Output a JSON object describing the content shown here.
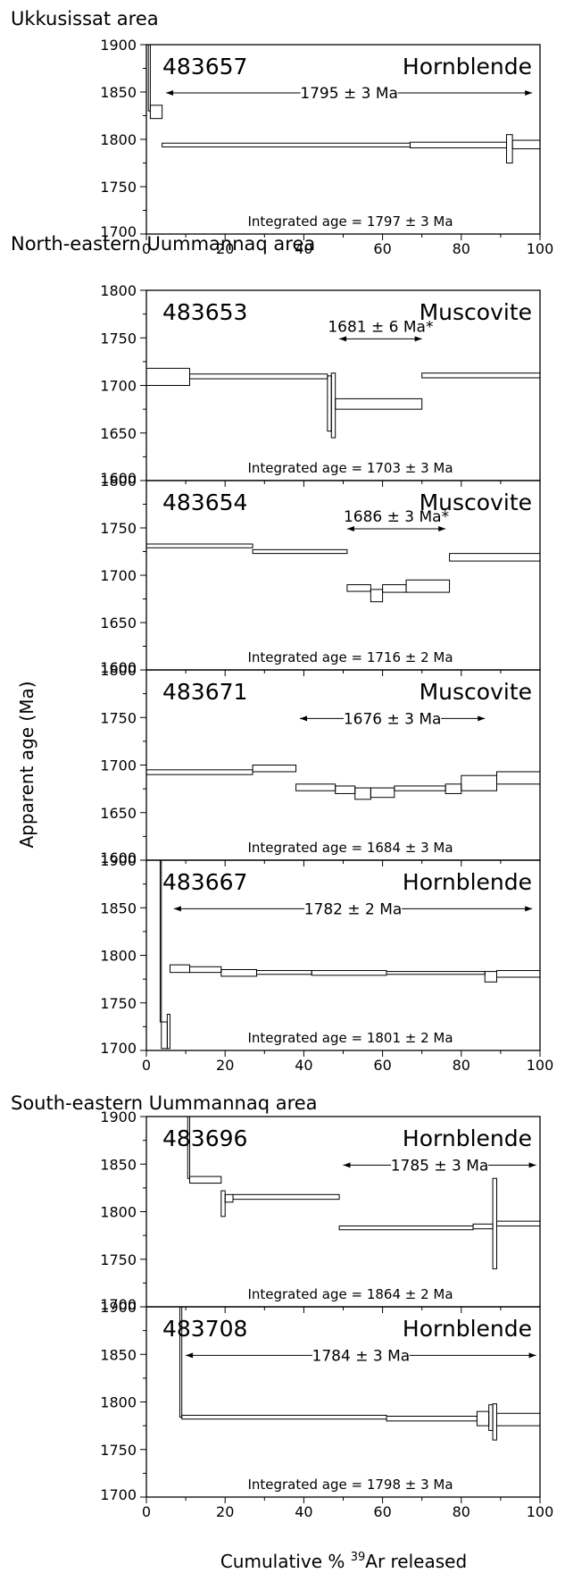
{
  "chart_data": {
    "type": "step",
    "xlabel": "Cumulative % ",
    "xlabel_sup": "39",
    "xlabel_rest": "Ar released",
    "ylabel": "Apparent age (Ma)",
    "xlim": [
      0,
      100
    ],
    "x_ticks": [
      "0",
      "20",
      "40",
      "60",
      "80",
      "100"
    ],
    "groups": [
      {
        "title": "Ukkusissat area",
        "panels": [
          {
            "sample": "483657",
            "mineral": "Hornblende",
            "ylim": [
              1700,
              1900
            ],
            "yticks": [
              "1700",
              "1750",
              "1800",
              "1850",
              "1900"
            ],
            "plateau_label": "1795 ± 3 Ma",
            "plateau_range": [
              5,
              98
            ],
            "integrated": "Integrated age = 1797 ± 3 Ma",
            "steps": [
              {
                "x0": 0.5,
                "x1": 1,
                "lo": 1830,
                "hi": 1900
              },
              {
                "x0": 1,
                "x1": 4,
                "lo": 1822,
                "hi": 1836
              },
              {
                "x0": 4,
                "x1": 67,
                "lo": 1792,
                "hi": 1796
              },
              {
                "x0": 67,
                "x1": 91.5,
                "lo": 1791,
                "hi": 1797
              },
              {
                "x0": 91.5,
                "x1": 93,
                "lo": 1775,
                "hi": 1805
              },
              {
                "x0": 93,
                "x1": 100,
                "lo": 1790,
                "hi": 1799
              }
            ],
            "show_x_ticks": true
          }
        ]
      },
      {
        "title": "North-eastern Uummannaq area",
        "panels": [
          {
            "sample": "483653",
            "mineral": "Muscovite",
            "ylim": [
              1600,
              1800
            ],
            "yticks": [
              "1600",
              "1650",
              "1700",
              "1750",
              "1800"
            ],
            "plateau_label": "1681 ± 6 Ma*",
            "plateau_range": [
              49,
              70
            ],
            "integrated": "Integrated age = 1703 ± 3 Ma",
            "steps": [
              {
                "x0": 0,
                "x1": 11,
                "lo": 1700,
                "hi": 1718
              },
              {
                "x0": 11,
                "x1": 46,
                "lo": 1707,
                "hi": 1712
              },
              {
                "x0": 46,
                "x1": 47,
                "lo": 1652,
                "hi": 1710
              },
              {
                "x0": 47,
                "x1": 48,
                "lo": 1645,
                "hi": 1713
              },
              {
                "x0": 48,
                "x1": 70,
                "lo": 1675,
                "hi": 1686
              },
              {
                "x0": 70,
                "x1": 100,
                "lo": 1708,
                "hi": 1713
              }
            ],
            "show_x_ticks": false
          },
          {
            "sample": "483654",
            "mineral": "Muscovite",
            "ylim": [
              1600,
              1800
            ],
            "yticks": [
              "1600",
              "1650",
              "1700",
              "1750",
              "1800"
            ],
            "plateau_label": "1686 ± 3 Ma*",
            "plateau_range": [
              51,
              76
            ],
            "integrated": "Integrated age = 1716 ± 2 Ma",
            "steps": [
              {
                "x0": 0,
                "x1": 27,
                "lo": 1729,
                "hi": 1733
              },
              {
                "x0": 27,
                "x1": 51,
                "lo": 1723,
                "hi": 1727
              },
              {
                "x0": 51,
                "x1": 57,
                "lo": 1683,
                "hi": 1690
              },
              {
                "x0": 57,
                "x1": 60,
                "lo": 1672,
                "hi": 1685
              },
              {
                "x0": 60,
                "x1": 66,
                "lo": 1682,
                "hi": 1690
              },
              {
                "x0": 66,
                "x1": 77,
                "lo": 1682,
                "hi": 1695
              },
              {
                "x0": 77,
                "x1": 100,
                "lo": 1715,
                "hi": 1723
              }
            ],
            "show_x_ticks": false
          },
          {
            "sample": "483671",
            "mineral": "Muscovite",
            "ylim": [
              1600,
              1800
            ],
            "yticks": [
              "1600",
              "1650",
              "1700",
              "1750",
              "1800"
            ],
            "plateau_label": "1676 ± 3 Ma",
            "plateau_range": [
              39,
              86
            ],
            "integrated": "Integrated age = 1684 ± 3 Ma",
            "steps": [
              {
                "x0": 0,
                "x1": 27,
                "lo": 1690,
                "hi": 1695
              },
              {
                "x0": 27,
                "x1": 38,
                "lo": 1693,
                "hi": 1700
              },
              {
                "x0": 38,
                "x1": 48,
                "lo": 1673,
                "hi": 1680
              },
              {
                "x0": 48,
                "x1": 53,
                "lo": 1670,
                "hi": 1678
              },
              {
                "x0": 53,
                "x1": 57,
                "lo": 1664,
                "hi": 1676
              },
              {
                "x0": 57,
                "x1": 63,
                "lo": 1666,
                "hi": 1676
              },
              {
                "x0": 63,
                "x1": 76,
                "lo": 1673,
                "hi": 1678
              },
              {
                "x0": 76,
                "x1": 80,
                "lo": 1670,
                "hi": 1680
              },
              {
                "x0": 80,
                "x1": 89,
                "lo": 1673,
                "hi": 1689
              },
              {
                "x0": 89,
                "x1": 100,
                "lo": 1680,
                "hi": 1693
              }
            ],
            "show_x_ticks": false
          },
          {
            "sample": "483667",
            "mineral": "Hornblende",
            "ylim": [
              1700,
              1900
            ],
            "yticks": [
              "1700",
              "1750",
              "1800",
              "1850",
              "1900"
            ],
            "plateau_label": "1782 ± 2 Ma",
            "plateau_range": [
              7,
              98
            ],
            "integrated": "Integrated age = 1801 ± 2 Ma",
            "steps": [
              {
                "x0": 3.5,
                "x1": 3.8,
                "lo": 1730,
                "hi": 1900
              },
              {
                "x0": 3.8,
                "x1": 5.3,
                "lo": 1702,
                "hi": 1730
              },
              {
                "x0": 5.3,
                "x1": 6,
                "lo": 1702,
                "hi": 1738
              },
              {
                "x0": 6,
                "x1": 11,
                "lo": 1782,
                "hi": 1790
              },
              {
                "x0": 11,
                "x1": 19,
                "lo": 1782,
                "hi": 1788
              },
              {
                "x0": 19,
                "x1": 28,
                "lo": 1778,
                "hi": 1785
              },
              {
                "x0": 28,
                "x1": 42,
                "lo": 1780,
                "hi": 1784
              },
              {
                "x0": 42,
                "x1": 61,
                "lo": 1779,
                "hi": 1784
              },
              {
                "x0": 61,
                "x1": 86,
                "lo": 1780,
                "hi": 1783
              },
              {
                "x0": 86,
                "x1": 89,
                "lo": 1772,
                "hi": 1783
              },
              {
                "x0": 89,
                "x1": 100,
                "lo": 1777,
                "hi": 1784
              }
            ],
            "show_x_ticks": true
          }
        ]
      },
      {
        "title": "South-eastern Uummannaq area",
        "panels": [
          {
            "sample": "483696",
            "mineral": "Hornblende",
            "ylim": [
              1700,
              1900
            ],
            "yticks": [
              "1700",
              "1750",
              "1800",
              "1850",
              "1900"
            ],
            "plateau_label": "1785 ± 3 Ma",
            "plateau_range": [
              50,
              99
            ],
            "integrated": "Integrated age = 1864 ± 2 Ma",
            "steps": [
              {
                "x0": 10.5,
                "x1": 11,
                "lo": 1835,
                "hi": 1900
              },
              {
                "x0": 11,
                "x1": 19,
                "lo": 1830,
                "hi": 1837
              },
              {
                "x0": 19,
                "x1": 20,
                "lo": 1795,
                "hi": 1822
              },
              {
                "x0": 20,
                "x1": 22,
                "lo": 1810,
                "hi": 1818
              },
              {
                "x0": 22,
                "x1": 49,
                "lo": 1813,
                "hi": 1818
              },
              {
                "x0": 49,
                "x1": 83,
                "lo": 1781,
                "hi": 1785
              },
              {
                "x0": 83,
                "x1": 88,
                "lo": 1782,
                "hi": 1787
              },
              {
                "x0": 88,
                "x1": 89,
                "lo": 1740,
                "hi": 1835
              },
              {
                "x0": 89,
                "x1": 100,
                "lo": 1785,
                "hi": 1790
              }
            ],
            "show_x_ticks": false
          },
          {
            "sample": "483708",
            "mineral": "Hornblende",
            "ylim": [
              1700,
              1900
            ],
            "yticks": [
              "1700",
              "1750",
              "1800",
              "1850",
              "1900"
            ],
            "plateau_label": "1784 ± 3 Ma",
            "plateau_range": [
              10,
              99
            ],
            "integrated": "Integrated age = 1798 ± 3 Ma",
            "steps": [
              {
                "x0": 8.5,
                "x1": 9,
                "lo": 1784,
                "hi": 1900
              },
              {
                "x0": 9,
                "x1": 61,
                "lo": 1782,
                "hi": 1786
              },
              {
                "x0": 61,
                "x1": 84,
                "lo": 1780,
                "hi": 1785
              },
              {
                "x0": 84,
                "x1": 87,
                "lo": 1775,
                "hi": 1790
              },
              {
                "x0": 87,
                "x1": 88,
                "lo": 1770,
                "hi": 1797
              },
              {
                "x0": 88,
                "x1": 89,
                "lo": 1760,
                "hi": 1798
              },
              {
                "x0": 89,
                "x1": 100,
                "lo": 1775,
                "hi": 1788
              }
            ],
            "show_x_ticks": true
          }
        ]
      }
    ]
  }
}
